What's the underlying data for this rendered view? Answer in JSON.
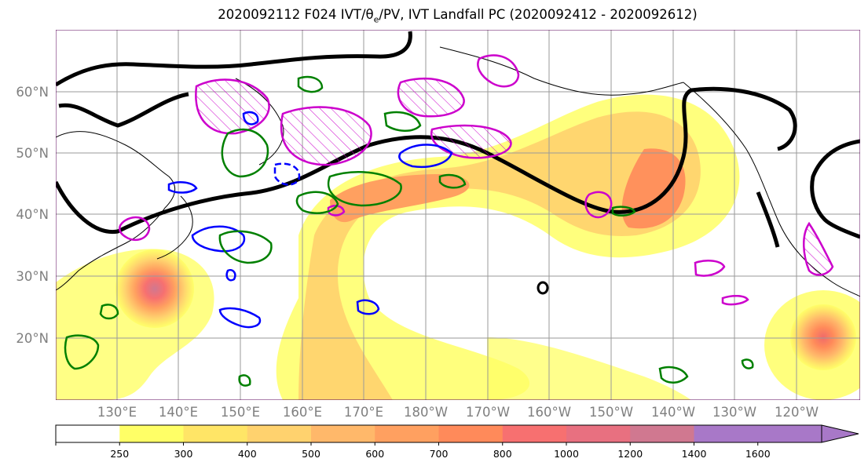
{
  "title": {
    "run": "2020092112 F024 IVT/",
    "theta": "θ",
    "theta_sub": "e",
    "rest": "/PV, IVT Landfall PC (2020092412 - 2020092612)"
  },
  "map": {
    "lat_labels": [
      "60°N",
      "50°N",
      "40°N",
      "30°N",
      "20°N"
    ],
    "lon_labels": [
      "130°E",
      "140°E",
      "150°E",
      "160°E",
      "170°E",
      "180°W",
      "170°W",
      "160°W",
      "150°W",
      "140°W",
      "130°W",
      "120°W"
    ],
    "fill_colors": [
      "#ffffff",
      "#ffff66",
      "#ffe566",
      "#ffd26e",
      "#ffb86a",
      "#ffa060",
      "#ff8a5a",
      "#f77070",
      "#e87080",
      "#d07890",
      "#a878c8"
    ],
    "contours": {
      "theta_e_pv": "#000000",
      "landfall_pc_positive": "#cc00cc",
      "landfall_pc_negative": "#0000ff",
      "ivt_anomaly": "#008000"
    }
  },
  "colorbar": {
    "levels": [
      "250",
      "300",
      "400",
      "500",
      "600",
      "700",
      "800",
      "1000",
      "1200",
      "1400",
      "1600"
    ],
    "colors": [
      "#ffffff",
      "#ffff66",
      "#ffe566",
      "#ffd26e",
      "#ffb86a",
      "#ffa060",
      "#ff8a5a",
      "#f77070",
      "#e87080",
      "#d07890",
      "#a878c8",
      "#a878c8"
    ]
  }
}
